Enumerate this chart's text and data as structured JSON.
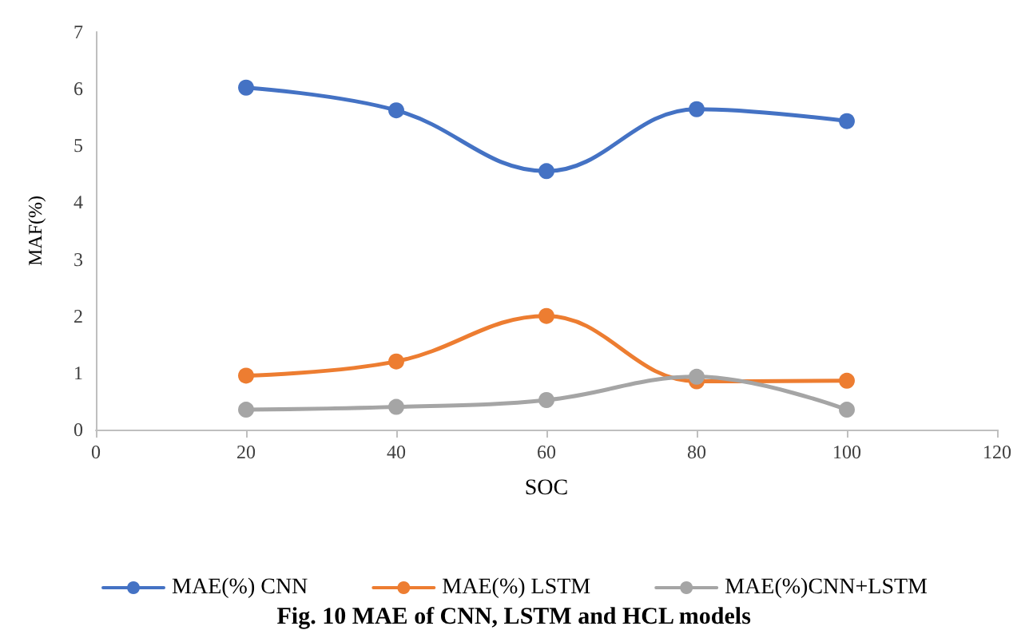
{
  "chart_data": {
    "type": "line",
    "xlabel": "SOC",
    "ylabel": "MAF(%)",
    "x": [
      20,
      40,
      60,
      80,
      100
    ],
    "series": [
      {
        "name": "MAE(%) CNN",
        "color": "#4472c4",
        "values": [
          6.02,
          5.62,
          4.55,
          5.64,
          5.43
        ]
      },
      {
        "name": "MAE(%) LSTM",
        "color": "#ed7d31",
        "values": [
          0.95,
          1.2,
          2.0,
          0.85,
          0.86
        ]
      },
      {
        "name": "MAE(%)CNN+LSTM",
        "color": "#a5a5a5",
        "values": [
          0.35,
          0.4,
          0.52,
          0.93,
          0.35
        ]
      }
    ],
    "xlim": [
      0,
      120
    ],
    "xticks": [
      0,
      20,
      40,
      60,
      80,
      100,
      120
    ],
    "ylim": [
      0,
      7
    ],
    "yticks": [
      0,
      1,
      2,
      3,
      4,
      5,
      6,
      7
    ],
    "grid": false,
    "legend": "bottom",
    "marker": "circle",
    "line_style": "solid",
    "annotations": [
      "Fig. 10 MAE of CNN, LSTM and HCL models"
    ]
  }
}
